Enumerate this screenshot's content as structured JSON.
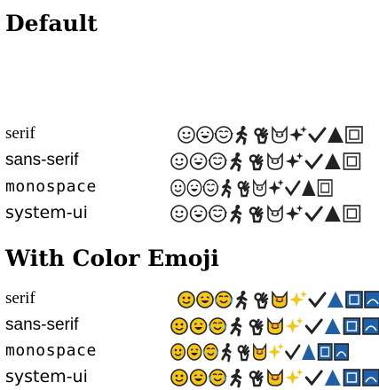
{
  "sections": [
    {
      "title": "Default",
      "color_emoji": false,
      "rows": [
        {
          "label": "serif"
        },
        {
          "label": "sans-serif"
        },
        {
          "label": "monospace"
        },
        {
          "label": "system-ui"
        }
      ]
    },
    {
      "title": "With Color Emoji",
      "color_emoji": true,
      "rows": [
        {
          "label": "serif"
        },
        {
          "label": "sans-serif"
        },
        {
          "label": "monospace"
        },
        {
          "label": "system-ui"
        }
      ]
    }
  ],
  "emoji_icons": [
    "smiling-face-icon",
    "laughing-face-icon",
    "crying-laughing-face-icon",
    "person-running-icon",
    "ok-hand-icon",
    "heart-eyes-cat-icon",
    "sparkles-icon",
    "checkmark-icon",
    "triangle-shape-icon",
    "square-shape-icon",
    "circle-shape-icon"
  ],
  "colors": {
    "text": "#000000",
    "emoji_yellow": "#f5c518",
    "emoji_outline": "#222222",
    "shape_blue": "#1f5fa8"
  }
}
